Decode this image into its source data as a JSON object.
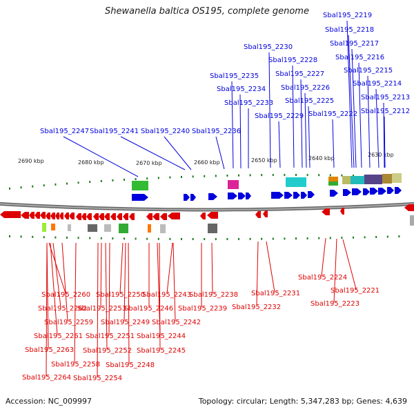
{
  "title": "Shewanella baltica OS195, complete genome",
  "colors": {
    "plus": "#0000dd",
    "minus": "#dd0000",
    "backbone": "#888888",
    "tick": "#1a7a1a"
  },
  "footer": {
    "accession": "Accession: NC_009997",
    "summary": "Topology: circular; Length: 5,347,283 bp; Genes: 4,639"
  },
  "scale_labels": [
    "2690 kbp",
    "2680 kbp",
    "2670 kbp",
    "2660 kbp",
    "2650 kbp",
    "2640 kbp",
    "2630 kbp"
  ],
  "plus_genes": [
    "Sbal195_2247",
    "Sbal195_2241",
    "Sbal195_2240",
    "Sbal195_2236",
    "Sbal195_2235",
    "Sbal195_2234",
    "Sbal195_2233",
    "Sbal195_2230",
    "Sbal195_2229",
    "Sbal195_2228",
    "Sbal195_2227",
    "Sbal195_2226",
    "Sbal195_2225",
    "Sbal195_2222",
    "Sbal195_2219",
    "Sbal195_2218",
    "Sbal195_2217",
    "Sbal195_2216",
    "Sbal195_2215",
    "Sbal195_2214",
    "Sbal195_2213",
    "Sbal195_2212"
  ],
  "minus_genes": [
    "Sbal195_2260",
    "Sbal195_2262",
    "Sbal195_2259",
    "Sbal195_2261",
    "Sbal195_2263",
    "Sbal195_2258",
    "Sbal195_2264",
    "Sbal195_2254",
    "Sbal195_2250",
    "Sbal195_2253",
    "Sbal195_2249",
    "Sbal195_2251",
    "Sbal195_2252",
    "Sbal195_2248",
    "Sbal195_2243",
    "Sbal195_2246",
    "Sbal195_2242",
    "Sbal195_2244",
    "Sbal195_2245",
    "Sbal195_2238",
    "Sbal195_2239",
    "Sbal195_2231",
    "Sbal195_2232",
    "Sbal195_2224",
    "Sbal195_2221",
    "Sbal195_2223"
  ]
}
